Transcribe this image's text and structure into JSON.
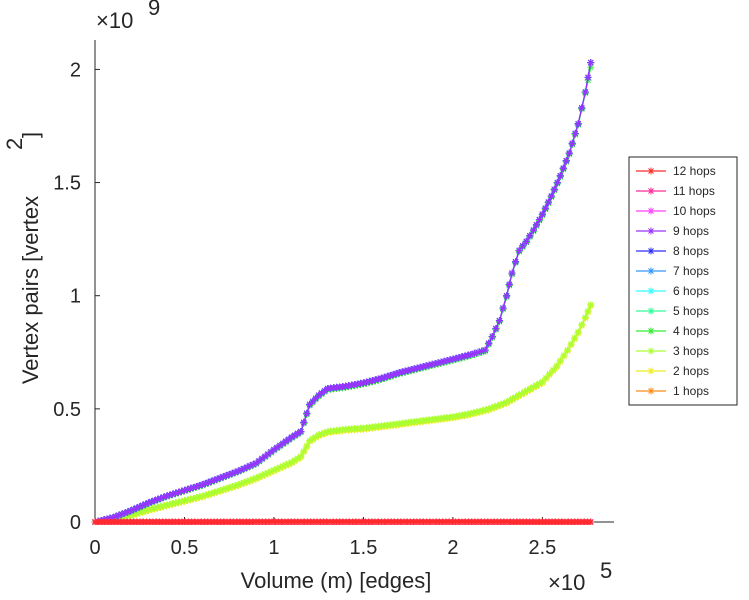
{
  "chart_data": {
    "type": "line",
    "title": "",
    "xlabel": "Volume (m) [edges]",
    "ylabel_main": "Vertex pairs [vertex",
    "ylabel_superscript": "2",
    "ylabel_close": "]",
    "xlim": [
      0,
      290000
    ],
    "ylim": [
      0,
      2130000000
    ],
    "x_ticks": [
      0,
      50000,
      100000,
      150000,
      200000,
      250000
    ],
    "x_tick_labels": [
      "0",
      "0.5",
      "1",
      "1.5",
      "2",
      "2.5"
    ],
    "y_ticks": [
      0,
      500000000,
      1000000000,
      1500000000,
      2000000000
    ],
    "y_tick_labels": [
      "0",
      "0.5",
      "1",
      "1.5",
      "2"
    ],
    "x_exponent": {
      "base": "×10",
      "power": "5"
    },
    "y_exponent": {
      "base": "×10",
      "power": "9"
    },
    "legend_position": "right",
    "series": [
      {
        "name": "12 hops",
        "color": "#ff2b2b",
        "x": [
          0,
          277000
        ],
        "y": [
          0,
          0
        ]
      },
      {
        "name": "11 hops",
        "color": "#ff2b99",
        "x": [
          0,
          277000
        ],
        "y": [
          0,
          0
        ]
      },
      {
        "name": "10 hops",
        "color": "#ff40ff",
        "x": [
          0,
          277000
        ],
        "y": [
          0,
          0
        ]
      },
      {
        "name": "9 hops",
        "color": "#9933ff",
        "x": [
          0,
          10000,
          20000,
          30000,
          40000,
          50000,
          60000,
          70000,
          80000,
          90000,
          100000,
          110000,
          115000,
          120000,
          125000,
          130000,
          140000,
          150000,
          160000,
          170000,
          180000,
          190000,
          200000,
          210000,
          218000,
          222000,
          226000,
          230000,
          233000,
          237000,
          241000,
          245000,
          250000,
          255000,
          260000,
          265000,
          270000,
          274000,
          277000
        ],
        "y": [
          0,
          20000000,
          50000000,
          85000000,
          115000000,
          140000000,
          165000000,
          195000000,
          225000000,
          260000000,
          320000000,
          375000000,
          400000000,
          520000000,
          560000000,
          590000000,
          600000000,
          615000000,
          635000000,
          660000000,
          680000000,
          700000000,
          720000000,
          740000000,
          760000000,
          820000000,
          890000000,
          1000000000,
          1100000000,
          1200000000,
          1240000000,
          1290000000,
          1360000000,
          1440000000,
          1530000000,
          1630000000,
          1760000000,
          1900000000,
          2030000000
        ]
      },
      {
        "name": "8 hops",
        "color": "#2e2eff",
        "x": [
          0,
          10000,
          20000,
          30000,
          40000,
          50000,
          60000,
          70000,
          80000,
          90000,
          100000,
          110000,
          115000,
          120000,
          125000,
          130000,
          140000,
          150000,
          160000,
          170000,
          180000,
          190000,
          200000,
          210000,
          218000,
          222000,
          226000,
          230000,
          233000,
          237000,
          241000,
          245000,
          250000,
          255000,
          260000,
          265000,
          270000,
          274000,
          277000
        ],
        "y": [
          0,
          20000000,
          50000000,
          85000000,
          115000000,
          140000000,
          165000000,
          195000000,
          225000000,
          260000000,
          320000000,
          375000000,
          400000000,
          520000000,
          560000000,
          590000000,
          600000000,
          615000000,
          635000000,
          660000000,
          680000000,
          700000000,
          720000000,
          740000000,
          760000000,
          820000000,
          890000000,
          1000000000,
          1100000000,
          1200000000,
          1240000000,
          1290000000,
          1360000000,
          1440000000,
          1530000000,
          1630000000,
          1760000000,
          1900000000,
          2030000000
        ]
      },
      {
        "name": "7 hops",
        "color": "#3399ff",
        "x": [
          0,
          10000,
          20000,
          30000,
          40000,
          50000,
          60000,
          70000,
          80000,
          90000,
          100000,
          110000,
          115000,
          120000,
          125000,
          130000,
          140000,
          150000,
          160000,
          170000,
          180000,
          190000,
          200000,
          210000,
          218000,
          222000,
          226000,
          230000,
          233000,
          237000,
          241000,
          245000,
          250000,
          255000,
          260000,
          265000,
          270000,
          274000,
          277000
        ],
        "y": [
          0,
          20000000,
          50000000,
          85000000,
          115000000,
          140000000,
          165000000,
          195000000,
          225000000,
          260000000,
          320000000,
          375000000,
          400000000,
          520000000,
          560000000,
          590000000,
          600000000,
          615000000,
          635000000,
          660000000,
          680000000,
          700000000,
          720000000,
          740000000,
          760000000,
          820000000,
          890000000,
          1000000000,
          1100000000,
          1200000000,
          1240000000,
          1290000000,
          1360000000,
          1440000000,
          1530000000,
          1630000000,
          1760000000,
          1900000000,
          2030000000
        ]
      },
      {
        "name": "6 hops",
        "color": "#33ffff",
        "x": [
          0,
          10000,
          20000,
          30000,
          40000,
          50000,
          60000,
          70000,
          80000,
          90000,
          100000,
          110000,
          115000,
          120000,
          125000,
          130000,
          140000,
          150000,
          160000,
          170000,
          180000,
          190000,
          200000,
          210000,
          218000,
          222000,
          226000,
          230000,
          233000,
          237000,
          241000,
          245000,
          250000,
          255000,
          260000,
          265000,
          270000,
          274000,
          277000
        ],
        "y": [
          0,
          20000000,
          50000000,
          85000000,
          115000000,
          140000000,
          165000000,
          195000000,
          225000000,
          260000000,
          320000000,
          375000000,
          400000000,
          520000000,
          560000000,
          590000000,
          600000000,
          615000000,
          635000000,
          660000000,
          680000000,
          700000000,
          720000000,
          740000000,
          760000000,
          820000000,
          890000000,
          1000000000,
          1100000000,
          1200000000,
          1240000000,
          1290000000,
          1360000000,
          1440000000,
          1530000000,
          1630000000,
          1760000000,
          1900000000,
          2030000000
        ]
      },
      {
        "name": "5 hops",
        "color": "#33ff99",
        "x": [
          0,
          10000,
          20000,
          30000,
          40000,
          50000,
          60000,
          70000,
          80000,
          90000,
          100000,
          110000,
          115000,
          120000,
          125000,
          130000,
          140000,
          150000,
          160000,
          170000,
          180000,
          190000,
          200000,
          210000,
          218000,
          222000,
          226000,
          230000,
          233000,
          237000,
          241000,
          245000,
          250000,
          255000,
          260000,
          265000,
          270000,
          274000,
          277000
        ],
        "y": [
          0,
          20000000,
          50000000,
          85000000,
          115000000,
          140000000,
          165000000,
          195000000,
          225000000,
          260000000,
          320000000,
          375000000,
          400000000,
          520000000,
          560000000,
          590000000,
          600000000,
          615000000,
          635000000,
          660000000,
          680000000,
          700000000,
          720000000,
          740000000,
          760000000,
          820000000,
          890000000,
          1000000000,
          1100000000,
          1200000000,
          1240000000,
          1290000000,
          1360000000,
          1440000000,
          1530000000,
          1630000000,
          1760000000,
          1900000000,
          2030000000
        ]
      },
      {
        "name": "4 hops",
        "color": "#33ee33",
        "x": [
          0,
          10000,
          20000,
          30000,
          40000,
          50000,
          60000,
          70000,
          80000,
          90000,
          100000,
          110000,
          115000,
          120000,
          125000,
          130000,
          140000,
          150000,
          160000,
          170000,
          180000,
          190000,
          200000,
          210000,
          218000,
          222000,
          226000,
          230000,
          233000,
          237000,
          241000,
          245000,
          250000,
          255000,
          260000,
          265000,
          270000,
          274000,
          277000
        ],
        "y": [
          0,
          18000000,
          47000000,
          82000000,
          112000000,
          137000000,
          162000000,
          192000000,
          222000000,
          257000000,
          316000000,
          371000000,
          396000000,
          515000000,
          555000000,
          585000000,
          595000000,
          610000000,
          630000000,
          655000000,
          675000000,
          695000000,
          715000000,
          735000000,
          755000000,
          815000000,
          885000000,
          995000000,
          1095000000,
          1195000000,
          1235000000,
          1285000000,
          1355000000,
          1435000000,
          1525000000,
          1625000000,
          1755000000,
          1895000000,
          2010000000
        ]
      },
      {
        "name": "3 hops",
        "color": "#aaff33",
        "x": [
          0,
          10000,
          20000,
          30000,
          40000,
          50000,
          60000,
          70000,
          80000,
          90000,
          100000,
          110000,
          115000,
          120000,
          125000,
          130000,
          140000,
          150000,
          160000,
          170000,
          180000,
          190000,
          200000,
          210000,
          220000,
          230000,
          240000,
          250000,
          258000,
          264000,
          270000,
          274000,
          277000
        ],
        "y": [
          0,
          12000000,
          30000000,
          55000000,
          75000000,
          95000000,
          115000000,
          140000000,
          165000000,
          195000000,
          230000000,
          265000000,
          290000000,
          360000000,
          385000000,
          400000000,
          410000000,
          415000000,
          425000000,
          435000000,
          445000000,
          455000000,
          465000000,
          480000000,
          500000000,
          530000000,
          575000000,
          620000000,
          690000000,
          760000000,
          840000000,
          905000000,
          960000000
        ]
      },
      {
        "name": "2 hops",
        "color": "#eeee22",
        "x": [
          0,
          10000,
          20000,
          30000,
          40000,
          50000,
          60000,
          70000,
          80000,
          90000,
          100000,
          110000,
          115000,
          120000,
          125000,
          130000,
          140000,
          150000,
          160000,
          170000,
          180000,
          190000,
          200000,
          210000,
          220000,
          230000,
          240000,
          250000,
          258000,
          264000,
          270000,
          274000,
          277000
        ],
        "y": [
          0,
          10000000,
          27000000,
          51000000,
          71000000,
          91000000,
          111000000,
          136000000,
          161000000,
          190000000,
          225000000,
          260000000,
          285000000,
          355000000,
          380000000,
          395000000,
          405000000,
          410000000,
          420000000,
          430000000,
          440000000,
          450000000,
          460000000,
          475000000,
          495000000,
          525000000,
          570000000,
          615000000,
          685000000,
          755000000,
          835000000,
          900000000,
          955000000
        ]
      },
      {
        "name": "1 hops",
        "color": "#ff8c1a",
        "x": [
          0,
          277000
        ],
        "y": [
          0,
          0
        ]
      }
    ]
  }
}
